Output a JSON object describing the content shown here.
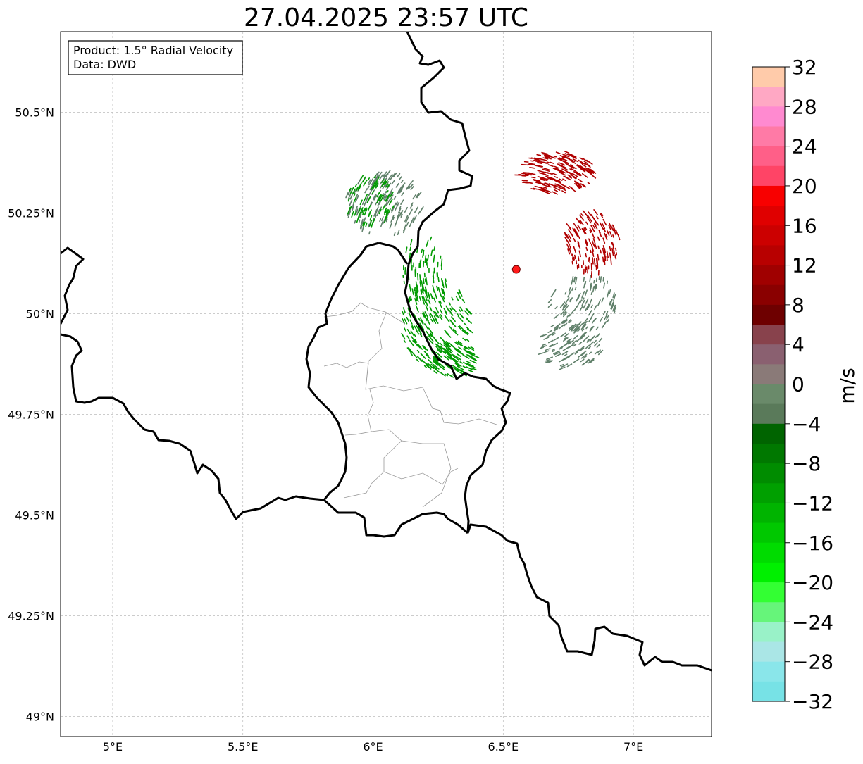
{
  "title": "27.04.2025 23:57 UTC",
  "info": {
    "product_line": "Product: 1.5° Radial Velocity",
    "data_line": "Data: DWD"
  },
  "map": {
    "lon_range": [
      4.8,
      7.3
    ],
    "lat_range": [
      48.95,
      50.7
    ],
    "lon_ticks": [
      {
        "value": 5.0,
        "label": "5°E"
      },
      {
        "value": 5.5,
        "label": "5.5°E"
      },
      {
        "value": 6.0,
        "label": "6°E"
      },
      {
        "value": 6.5,
        "label": "6.5°E"
      },
      {
        "value": 7.0,
        "label": "7°E"
      }
    ],
    "lat_ticks": [
      {
        "value": 50.5,
        "label": "50.5°N"
      },
      {
        "value": 50.25,
        "label": "50.25°N"
      },
      {
        "value": 50.0,
        "label": "50°N"
      },
      {
        "value": 49.75,
        "label": "49.75°N"
      },
      {
        "value": 49.5,
        "label": "49.5°N"
      },
      {
        "value": 49.25,
        "label": "49.25°N"
      },
      {
        "value": 49.0,
        "label": "49°N"
      }
    ],
    "radar_site": {
      "lon": 6.55,
      "lat": 50.11
    },
    "grid": true
  },
  "colorbar": {
    "unit": "m/s",
    "min": -32,
    "max": 32,
    "tick_labels": [
      "32",
      "28",
      "24",
      "20",
      "16",
      "12",
      "8",
      "4",
      "0",
      "−4",
      "−8",
      "−12",
      "−16",
      "−20",
      "−24",
      "−28",
      "−32"
    ],
    "colors_top_to_bottom": [
      "#ffcbaa",
      "#ffa8c4",
      "#ff8ad0",
      "#ff7aa6",
      "#ff5f88",
      "#ff4466",
      "#f80000",
      "#e00000",
      "#cc0000",
      "#b80000",
      "#a00000",
      "#8a0000",
      "#6e0000",
      "#88424c",
      "#8a6070",
      "#8a7a78",
      "#6a8a6a",
      "#5a7a5a",
      "#006400",
      "#007800",
      "#008c00",
      "#00a000",
      "#00b400",
      "#00c800",
      "#00dc00",
      "#00f000",
      "#33ff33",
      "#66f57a",
      "#99f2c8",
      "#aae6e6",
      "#8ae6ea",
      "#77e2e6"
    ]
  },
  "echo_colors": {
    "receding": "#b00000",
    "approaching": "#009a00",
    "near_zero": "#60806a"
  }
}
